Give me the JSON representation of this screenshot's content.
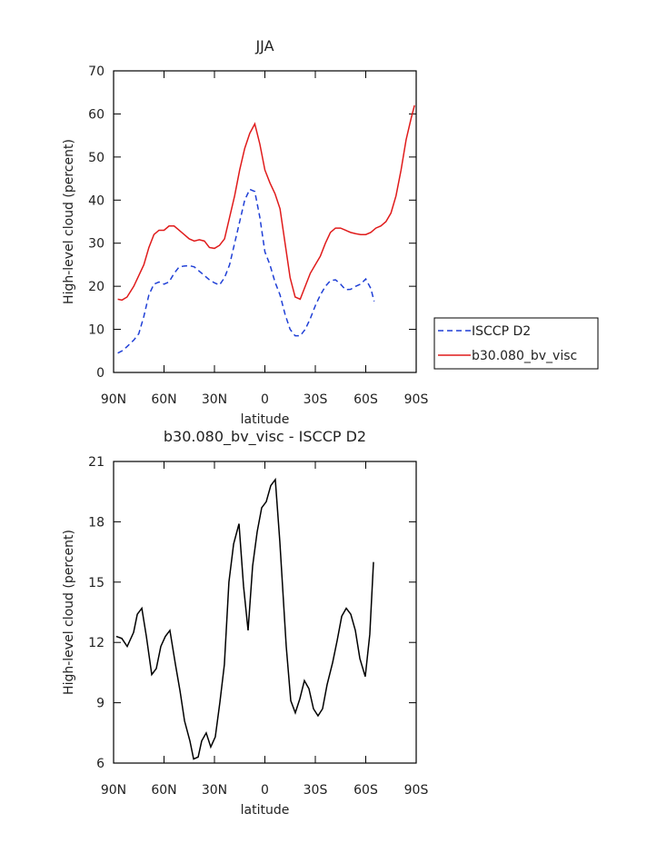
{
  "chart_data": [
    {
      "type": "line",
      "title": "JJA",
      "x_label": "latitude",
      "y_label": "High-level cloud (percent)",
      "xlim": [
        -90,
        90
      ],
      "ylim": [
        0,
        70
      ],
      "xticks": [
        {
          "value": -90,
          "label": "90N"
        },
        {
          "value": -60,
          "label": "60N"
        },
        {
          "value": -30,
          "label": "30N"
        },
        0,
        {
          "value": 30,
          "label": "30S"
        },
        {
          "value": 60,
          "label": "60S"
        },
        {
          "value": 90,
          "label": "90S"
        }
      ],
      "yticks": [
        0,
        10,
        20,
        30,
        40,
        50,
        60,
        70
      ],
      "legend": "right",
      "series": [
        {
          "name": "ISCCP D2",
          "color": "#1f3fd6",
          "dashed": true,
          "x": [
            -87.5,
            -85,
            -82,
            -78,
            -75,
            -72,
            -69,
            -66,
            -63,
            -60,
            -57,
            -54,
            -51,
            -48,
            -45,
            -42,
            -39,
            -36,
            -33,
            -30,
            -27,
            -24,
            -21,
            -18,
            -15,
            -12,
            -9,
            -6,
            -3,
            0,
            3,
            6,
            9,
            12,
            15,
            18,
            21,
            24,
            27,
            30,
            33,
            36,
            39,
            42,
            45,
            48,
            51,
            54,
            57,
            60,
            63,
            65
          ],
          "values": [
            4.5,
            5,
            6,
            7.5,
            9,
            13,
            18,
            20.5,
            21,
            20.5,
            21,
            23,
            24.5,
            24.7,
            24.8,
            24.5,
            23.5,
            22.5,
            21.5,
            20.8,
            20.3,
            22,
            25,
            30,
            35,
            40,
            42.5,
            42,
            36,
            28,
            25,
            21,
            18,
            13.5,
            10,
            8.5,
            8.5,
            10,
            12.5,
            15.5,
            18,
            20,
            21.3,
            21.5,
            20.5,
            19.2,
            19.3,
            20,
            20.5,
            21.7,
            19.5,
            16.5
          ]
        },
        {
          "name": "b30.080_bv_visc",
          "color": "#e01b1b",
          "dashed": false,
          "x": [
            -87.5,
            -85,
            -82,
            -78,
            -75,
            -72,
            -69,
            -66,
            -63,
            -60,
            -57,
            -54,
            -51,
            -48,
            -45,
            -42,
            -39,
            -36,
            -33,
            -30,
            -27,
            -24,
            -21,
            -18,
            -15,
            -12,
            -9,
            -6,
            -3,
            0,
            3,
            6,
            9,
            12,
            15,
            18,
            21,
            24,
            27,
            30,
            33,
            36,
            39,
            42,
            45,
            48,
            51,
            54,
            57,
            60,
            63,
            66,
            69,
            72,
            75,
            78,
            81,
            84,
            87,
            89
          ],
          "values": [
            17,
            16.8,
            17.5,
            20,
            22.5,
            25,
            29,
            32,
            33,
            33,
            34,
            34,
            33,
            32,
            31,
            30.5,
            30.8,
            30.5,
            29,
            28.8,
            29.5,
            31,
            36,
            41,
            47,
            52,
            55.5,
            57.7,
            53,
            47,
            44,
            41.5,
            38,
            30,
            22,
            17.5,
            17,
            20,
            23,
            25,
            27,
            30,
            32.5,
            33.5,
            33.5,
            33,
            32.5,
            32.2,
            32,
            32,
            32.5,
            33.5,
            34,
            35,
            37,
            41,
            47,
            54,
            59,
            62
          ]
        }
      ]
    },
    {
      "type": "line",
      "title": "b30.080_bv_visc - ISCCP D2",
      "x_label": "latitude",
      "y_label": "High-level cloud (percent)",
      "xlim": [
        -90,
        90
      ],
      "ylim": [
        6,
        21
      ],
      "xticks": [
        {
          "value": -90,
          "label": "90N"
        },
        {
          "value": -60,
          "label": "60N"
        },
        {
          "value": -30,
          "label": "30N"
        },
        0,
        {
          "value": 30,
          "label": "30S"
        },
        {
          "value": 60,
          "label": "60S"
        },
        {
          "value": 90,
          "label": "90S"
        }
      ],
      "yticks": [
        6,
        9,
        12,
        15,
        18,
        21
      ],
      "series": [
        {
          "color": "#000000",
          "dashed": false,
          "x": [
            -88.4,
            -85.1,
            -81.9,
            -78.1,
            -75.9,
            -73.2,
            -70.5,
            -67.3,
            -64.6,
            -61.9,
            -59.2,
            -56.5,
            -53.2,
            -50.5,
            -47.8,
            -44.6,
            -42.4,
            -39.7,
            -37.6,
            -34.9,
            -32.2,
            -29.5,
            -26.8,
            -24.1,
            -21.4,
            -18.6,
            -15.4,
            -12.7,
            -10.0,
            -7.3,
            -4.6,
            -1.9,
            0.8,
            3.5,
            6.2,
            8.9,
            12.7,
            15.4,
            18.1,
            20.8,
            23.5,
            26.2,
            28.9,
            31.6,
            34.3,
            37.0,
            40.3,
            43.0,
            45.7,
            48.4,
            51.1,
            53.8,
            56.5,
            59.7,
            62.4,
            64.6
          ],
          "values": [
            12.3,
            12.2,
            11.8,
            12.5,
            13.4,
            13.7,
            12.3,
            10.4,
            10.7,
            11.8,
            12.3,
            12.6,
            10.9,
            9.6,
            8.1,
            7.1,
            6.2,
            6.3,
            7.1,
            7.5,
            6.8,
            7.3,
            9.0,
            10.9,
            15.0,
            16.9,
            17.9,
            14.8,
            12.6,
            15.8,
            17.5,
            18.7,
            19.0,
            19.8,
            20.1,
            17.0,
            11.8,
            9.1,
            8.5,
            9.2,
            10.1,
            9.7,
            8.7,
            8.35,
            8.7,
            9.9,
            11.0,
            12.1,
            13.3,
            13.7,
            13.4,
            12.6,
            11.2,
            10.3,
            12.4,
            16.0
          ]
        }
      ]
    }
  ]
}
